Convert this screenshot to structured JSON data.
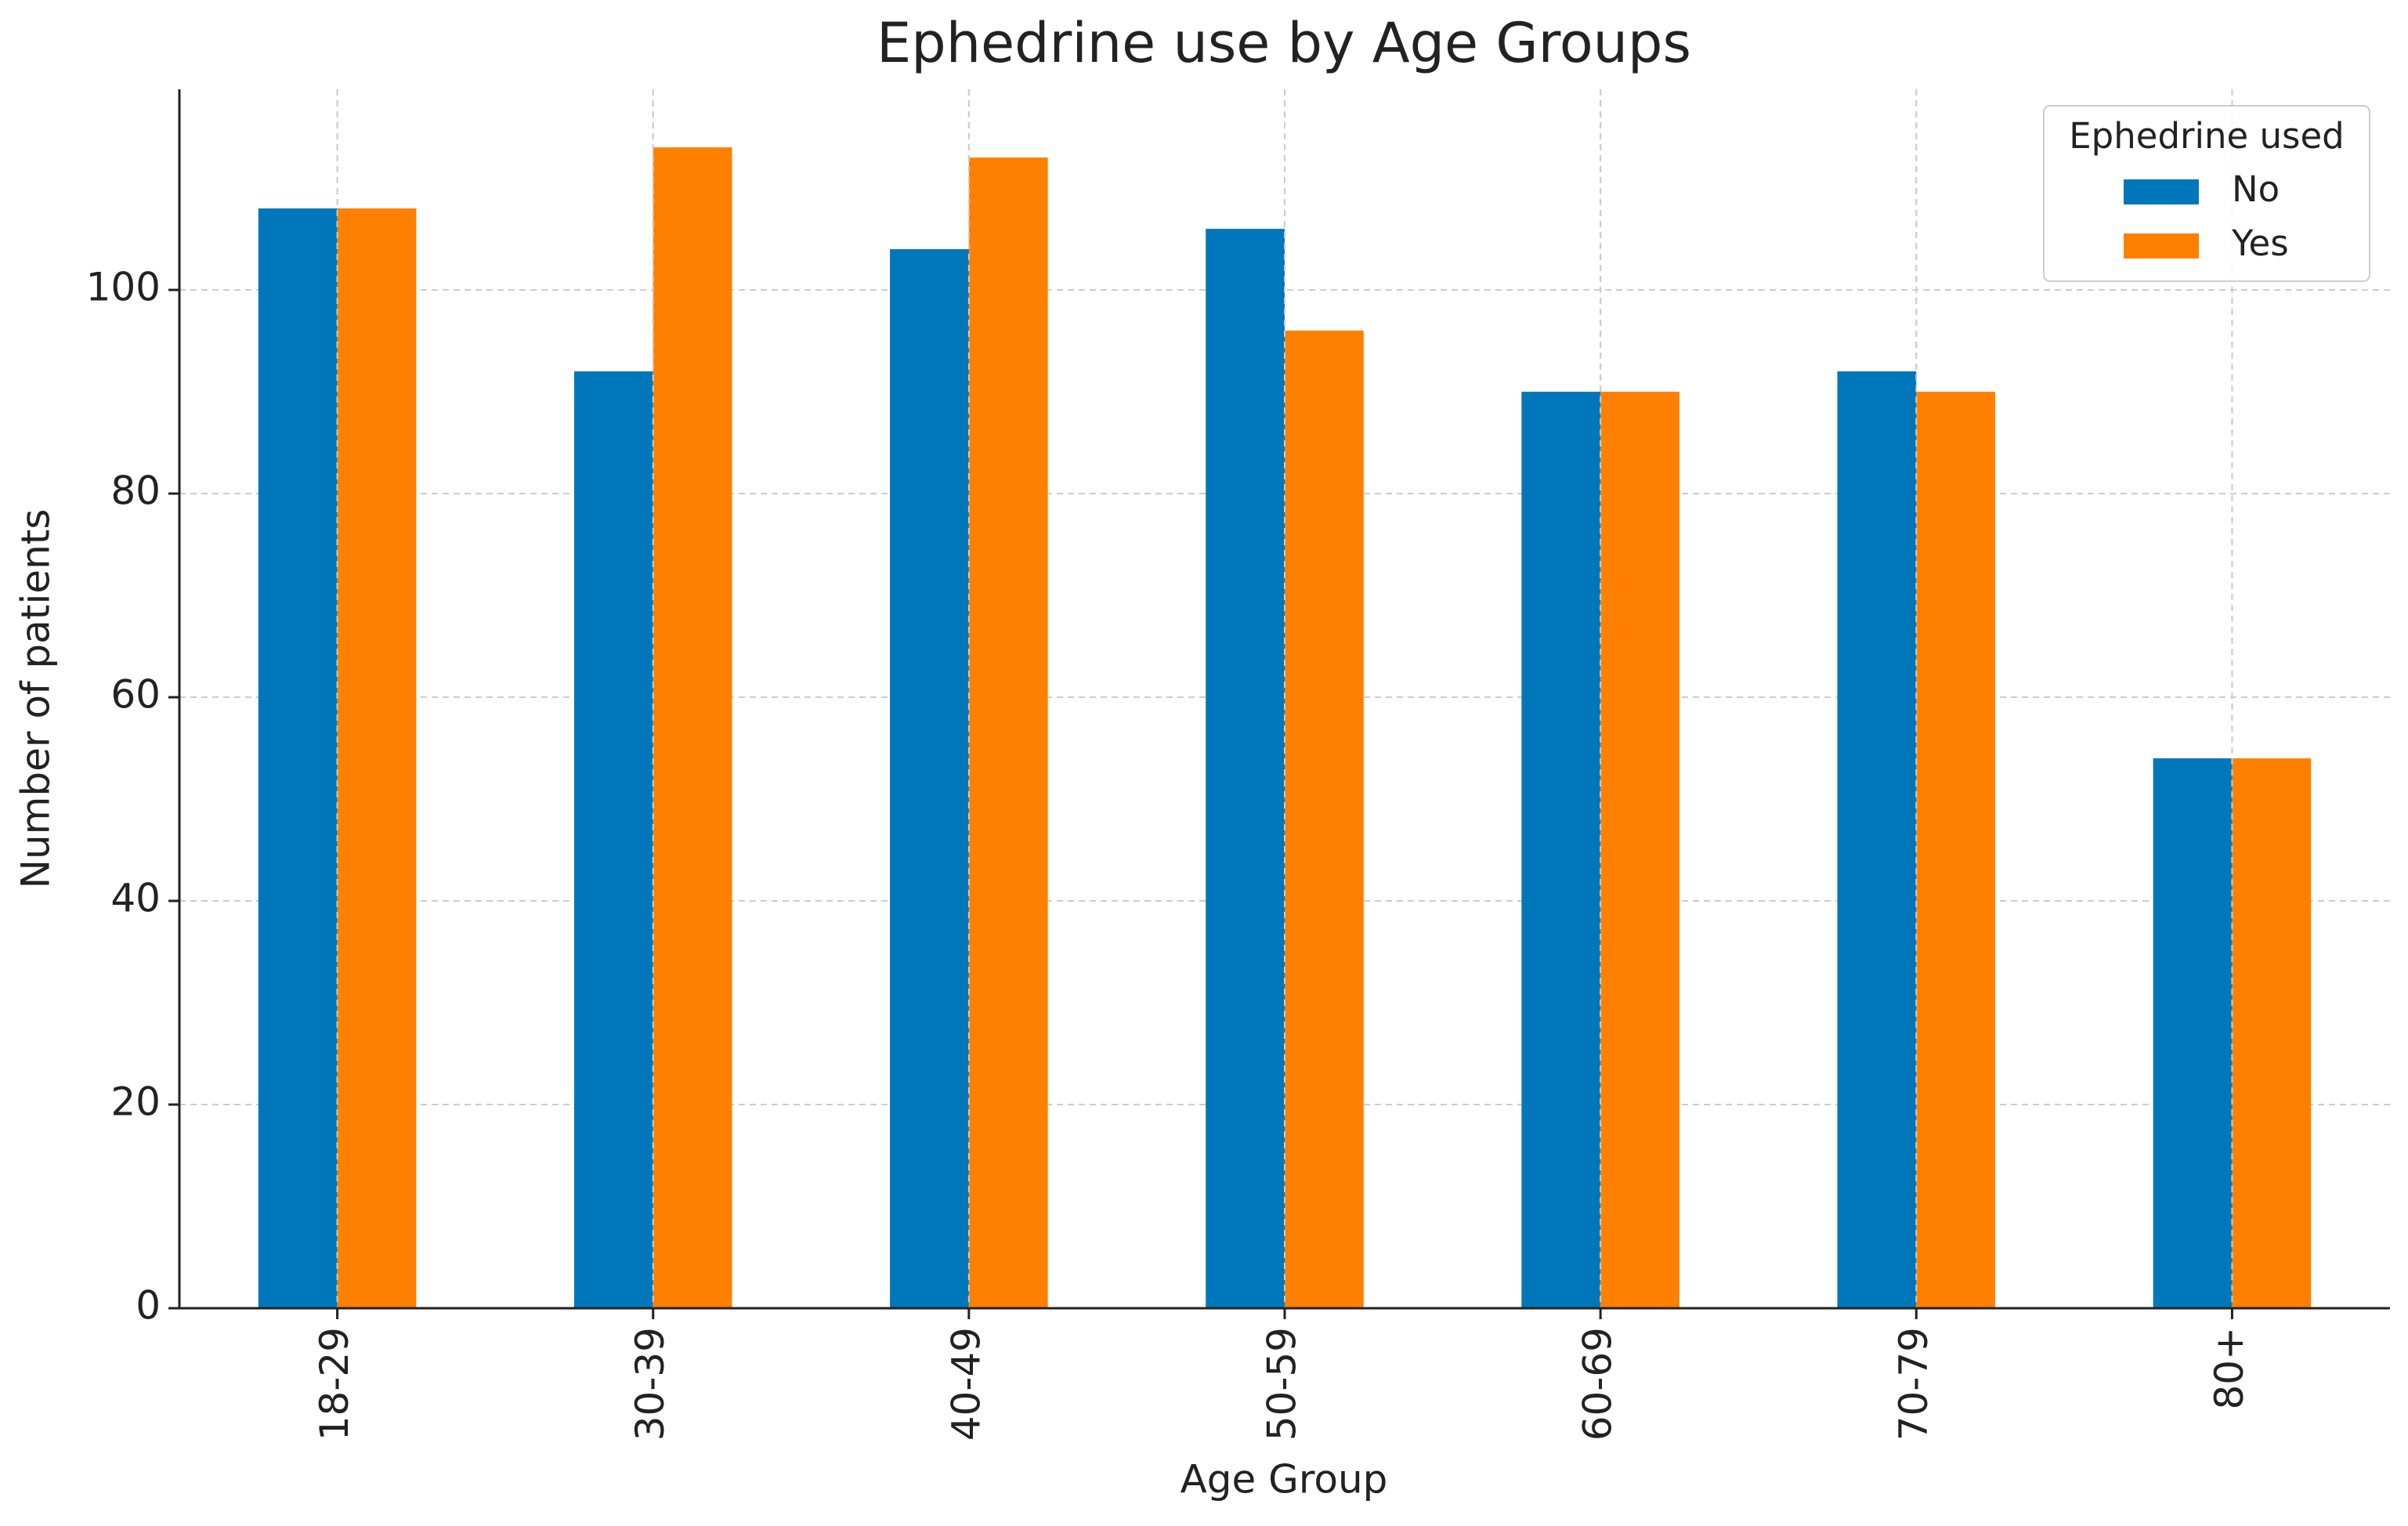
{
  "chart_data": {
    "type": "bar",
    "title": "Ephedrine use by Age Groups",
    "x_label": "Age Group",
    "y_label": "Number of patients",
    "categories": [
      "18-29",
      "30-39",
      "40-49",
      "50-59",
      "60-69",
      "70-79",
      "80+"
    ],
    "series": [
      {
        "name": "No",
        "color": "#0077bb",
        "values": [
          108,
          92,
          104,
          106,
          90,
          92,
          54
        ]
      },
      {
        "name": "Yes",
        "color": "#ff8000",
        "values": [
          108,
          114,
          113,
          96,
          90,
          90,
          54
        ]
      }
    ],
    "legend_title": "Ephedrine used",
    "legend_loc": "upper right",
    "ylim": [
      0,
      119.7
    ],
    "yticks": [
      0,
      20,
      40,
      60,
      80,
      100
    ],
    "grid": true
  }
}
